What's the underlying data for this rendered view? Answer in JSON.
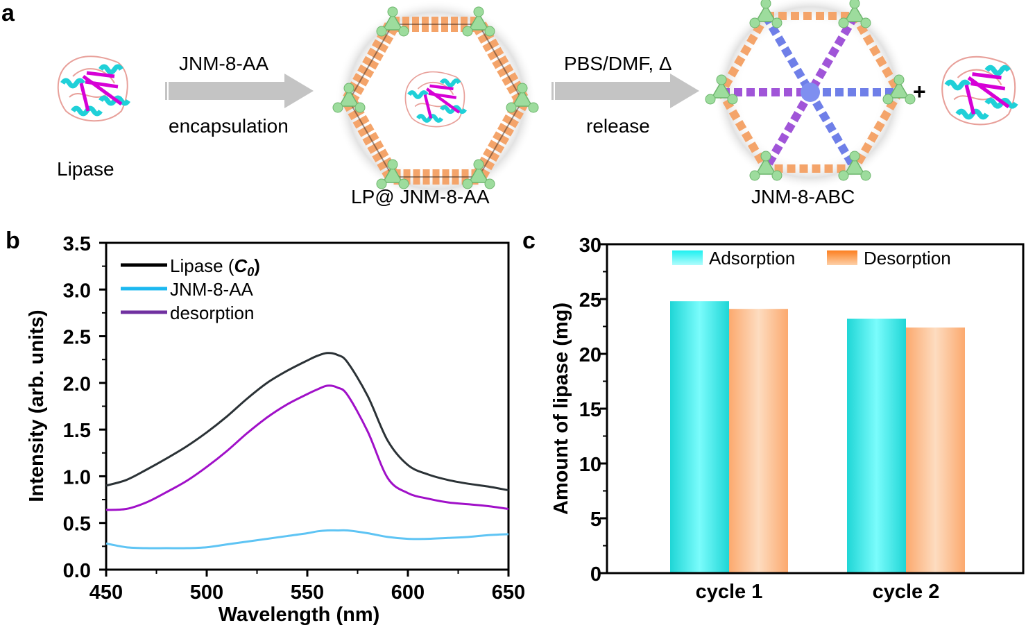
{
  "panel_labels": {
    "a": "a",
    "b": "b",
    "c": "c"
  },
  "schematic": {
    "lipase_label": "Lipase",
    "step1": {
      "top": "JNM-8-AA",
      "bottom": "encapsulation"
    },
    "complex_label": "LP@ JNM-8-AA",
    "step2": {
      "top": "PBS/DMF, Δ",
      "bottom": "release"
    },
    "product_label": "JNM-8-ABC",
    "plus": "+",
    "icons": [
      "lipase-protein-icon",
      "arrow-right-icon",
      "cof-framework-with-enzyme-icon",
      "arrow-right-icon",
      "cof-framework-abc-icon",
      "lipase-protein-icon"
    ],
    "colors": {
      "helix": "#1fd0d8",
      "sheet": "#d600d6",
      "loop": "#e8a09a",
      "node": "#9ddc9d",
      "linker_a": "#f4a46a",
      "linker_b": "#6f7fe8",
      "linker_c": "#a055d8",
      "arrow": "#c4c4c4"
    }
  },
  "chart_data": [
    {
      "type": "line",
      "title": "",
      "xlabel": "Wavelength (nm)",
      "ylabel": "Intensity (arb. units)",
      "xlim": [
        450,
        650
      ],
      "ylim": [
        0.0,
        3.5
      ],
      "xticks": [
        "450",
        "500",
        "550",
        "600",
        "650"
      ],
      "yticks": [
        "0.0",
        "0.5",
        "1.0",
        "1.5",
        "2.0",
        "2.5",
        "3.0",
        "3.5"
      ],
      "grid": false,
      "legend_position": "top-left",
      "x": [
        450,
        460,
        470,
        480,
        490,
        500,
        510,
        520,
        530,
        540,
        550,
        555,
        560,
        565,
        570,
        580,
        590,
        600,
        610,
        620,
        630,
        640,
        650
      ],
      "series": [
        {
          "name": "Lipase (C0)",
          "legend_main": "Lipase (",
          "legend_sym": "C",
          "legend_sub": "0",
          "legend_close": ")",
          "color": "#2b3236",
          "values": [
            0.9,
            0.96,
            1.07,
            1.19,
            1.32,
            1.47,
            1.64,
            1.83,
            2.0,
            2.13,
            2.24,
            2.29,
            2.32,
            2.3,
            2.22,
            1.86,
            1.38,
            1.12,
            1.02,
            0.96,
            0.92,
            0.89,
            0.85
          ]
        },
        {
          "name": "JNM-8-AA",
          "color": "#5ec4f4",
          "values": [
            0.28,
            0.24,
            0.23,
            0.23,
            0.23,
            0.24,
            0.27,
            0.3,
            0.33,
            0.36,
            0.39,
            0.41,
            0.42,
            0.42,
            0.42,
            0.39,
            0.35,
            0.33,
            0.33,
            0.34,
            0.35,
            0.37,
            0.38
          ]
        },
        {
          "name": "desorption",
          "color": "#a010c8",
          "values": [
            0.64,
            0.65,
            0.72,
            0.83,
            0.95,
            1.1,
            1.27,
            1.46,
            1.63,
            1.77,
            1.88,
            1.93,
            1.97,
            1.95,
            1.87,
            1.48,
            0.98,
            0.82,
            0.76,
            0.72,
            0.7,
            0.68,
            0.65
          ]
        }
      ]
    },
    {
      "type": "bar",
      "title": "",
      "xlabel": "",
      "ylabel": "Amount of lipase (mg)",
      "ylim": [
        0,
        30
      ],
      "yticks": [
        "0",
        "5",
        "10",
        "15",
        "20",
        "25",
        "30"
      ],
      "categories": [
        "cycle 1",
        "cycle 2"
      ],
      "grid": false,
      "legend_position": "top",
      "series": [
        {
          "name": "Adsorption",
          "color_edge": "#1fd6d6",
          "color_mid": "#7afcfc",
          "values": [
            24.8,
            23.2
          ]
        },
        {
          "name": "Desorption",
          "color_edge": "#fca96e",
          "color_mid": "#fddcc0",
          "values": [
            24.1,
            22.4
          ]
        }
      ]
    }
  ]
}
